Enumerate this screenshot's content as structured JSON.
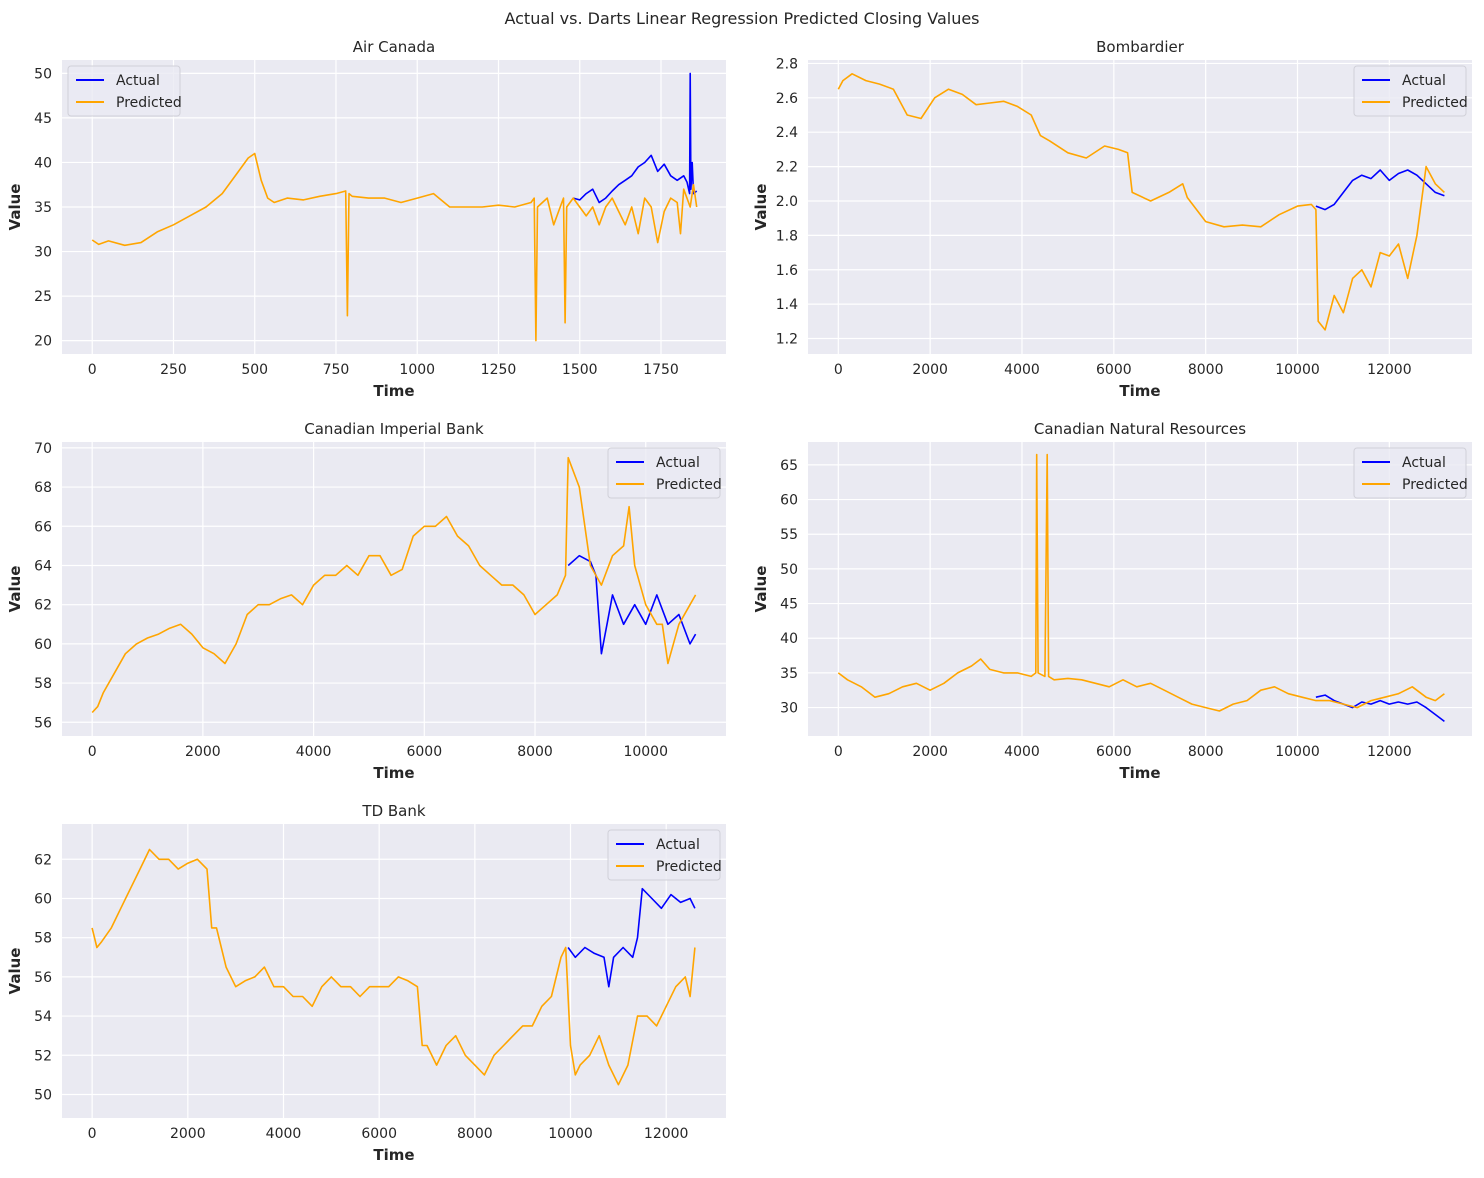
{
  "figure": {
    "title": "Actual vs. Darts Linear Regression Predicted Closing Values"
  },
  "colors": {
    "actual": "#0000ff",
    "predicted": "#ffa500",
    "plot_bg": "#eaeaf2",
    "grid": "#ffffff"
  },
  "chart_data": [
    {
      "type": "line",
      "title": "Air Canada",
      "xlabel": "Time",
      "ylabel": "Value",
      "xlim": [
        -93,
        1950
      ],
      "ylim": [
        18.5,
        51.5
      ],
      "xticks": [
        0,
        250,
        500,
        750,
        1000,
        1250,
        1500,
        1750
      ],
      "yticks": [
        20,
        25,
        30,
        35,
        40,
        45,
        50
      ],
      "ytick_labels": [
        "20",
        "25",
        "30",
        "35",
        "40",
        "45",
        "50"
      ],
      "legend": "top-left",
      "grid": true,
      "series": [
        {
          "name": "Actual",
          "color": "#0000ff",
          "x": [
            1480,
            1500,
            1520,
            1540,
            1560,
            1580,
            1600,
            1620,
            1640,
            1660,
            1680,
            1700,
            1720,
            1740,
            1760,
            1780,
            1800,
            1820,
            1830,
            1838,
            1840,
            1842,
            1846,
            1850,
            1860
          ],
          "y": [
            36.0,
            35.8,
            36.5,
            37.0,
            35.5,
            36.0,
            36.8,
            37.5,
            38.0,
            38.5,
            39.5,
            40.0,
            40.8,
            39.0,
            39.8,
            38.5,
            38.0,
            38.5,
            37.8,
            36.5,
            50.0,
            37.0,
            40.0,
            36.5,
            36.8
          ]
        },
        {
          "name": "Predicted",
          "color": "#ffa500",
          "x": [
            0,
            20,
            50,
            100,
            150,
            200,
            250,
            300,
            350,
            400,
            450,
            480,
            500,
            520,
            540,
            560,
            600,
            650,
            700,
            750,
            780,
            785,
            790,
            800,
            850,
            900,
            950,
            1000,
            1050,
            1100,
            1150,
            1200,
            1250,
            1300,
            1350,
            1360,
            1365,
            1370,
            1400,
            1420,
            1440,
            1450,
            1455,
            1460,
            1480,
            1500,
            1520,
            1540,
            1560,
            1580,
            1600,
            1620,
            1640,
            1660,
            1680,
            1700,
            1720,
            1740,
            1760,
            1780,
            1800,
            1810,
            1820,
            1840,
            1850,
            1860
          ],
          "y": [
            31.3,
            30.8,
            31.2,
            30.7,
            31.0,
            32.2,
            33.0,
            34.0,
            35.0,
            36.5,
            39.0,
            40.5,
            41.0,
            38.0,
            36.0,
            35.5,
            36.0,
            35.8,
            36.2,
            36.5,
            36.8,
            22.8,
            36.5,
            36.2,
            36.0,
            36.0,
            35.5,
            36.0,
            36.5,
            35.0,
            35.0,
            35.0,
            35.2,
            35.0,
            35.5,
            36.0,
            20.0,
            35.0,
            36.0,
            33.0,
            35.0,
            36.0,
            22.0,
            35.0,
            36.0,
            35.0,
            34.0,
            35.0,
            33.0,
            35.0,
            36.0,
            34.5,
            33.0,
            35.0,
            32.0,
            36.0,
            35.0,
            31.0,
            34.5,
            36.0,
            35.5,
            32.0,
            37.0,
            35.0,
            37.5,
            35.0
          ]
        }
      ]
    },
    {
      "type": "line",
      "title": "Bombardier",
      "xlabel": "Time",
      "ylabel": "Value",
      "xlim": [
        -660,
        13800
      ],
      "ylim": [
        1.11,
        2.82
      ],
      "xticks": [
        0,
        2000,
        4000,
        6000,
        8000,
        10000,
        12000
      ],
      "yticks": [
        1.2,
        1.4,
        1.6,
        1.8,
        2.0,
        2.2,
        2.4,
        2.6,
        2.8
      ],
      "ytick_labels": [
        "1.2",
        "1.4",
        "1.6",
        "1.8",
        "2.0",
        "2.2",
        "2.4",
        "2.6",
        "2.8"
      ],
      "legend": "top-right",
      "grid": true,
      "series": [
        {
          "name": "Actual",
          "color": "#0000ff",
          "x": [
            10400,
            10600,
            10800,
            11000,
            11200,
            11400,
            11600,
            11800,
            12000,
            12200,
            12400,
            12600,
            12800,
            13000,
            13200
          ],
          "y": [
            1.97,
            1.95,
            1.98,
            2.05,
            2.12,
            2.15,
            2.13,
            2.18,
            2.12,
            2.16,
            2.18,
            2.15,
            2.1,
            2.05,
            2.03
          ]
        },
        {
          "name": "Predicted",
          "color": "#ffa500",
          "x": [
            0,
            100,
            300,
            600,
            900,
            1200,
            1500,
            1800,
            2100,
            2400,
            2700,
            3000,
            3300,
            3600,
            3900,
            4200,
            4400,
            4600,
            5000,
            5400,
            5800,
            6100,
            6300,
            6400,
            6800,
            7200,
            7500,
            7600,
            8000,
            8400,
            8800,
            9200,
            9600,
            10000,
            10300,
            10400,
            10450,
            10600,
            10800,
            11000,
            11200,
            11400,
            11600,
            11800,
            12000,
            12200,
            12400,
            12600,
            12800,
            13000,
            13200
          ],
          "y": [
            2.65,
            2.7,
            2.74,
            2.7,
            2.68,
            2.65,
            2.5,
            2.48,
            2.6,
            2.65,
            2.62,
            2.56,
            2.57,
            2.58,
            2.55,
            2.5,
            2.38,
            2.35,
            2.28,
            2.25,
            2.32,
            2.3,
            2.28,
            2.05,
            2.0,
            2.05,
            2.1,
            2.02,
            1.88,
            1.85,
            1.86,
            1.85,
            1.92,
            1.97,
            1.98,
            1.95,
            1.3,
            1.25,
            1.45,
            1.35,
            1.55,
            1.6,
            1.5,
            1.7,
            1.68,
            1.75,
            1.55,
            1.8,
            2.2,
            2.1,
            2.05
          ]
        }
      ]
    },
    {
      "type": "line",
      "title": "Canadian Imperial Bank",
      "xlabel": "Time",
      "ylabel": "Value",
      "xlim": [
        -545,
        11450
      ],
      "ylim": [
        55.3,
        70.3
      ],
      "xticks": [
        0,
        2000,
        4000,
        6000,
        8000,
        10000
      ],
      "yticks": [
        56,
        58,
        60,
        62,
        64,
        66,
        68,
        70
      ],
      "ytick_labels": [
        "56",
        "58",
        "60",
        "62",
        "64",
        "66",
        "68",
        "70"
      ],
      "legend": "top-right",
      "grid": true,
      "series": [
        {
          "name": "Actual",
          "color": "#0000ff",
          "x": [
            8600,
            8800,
            9000,
            9100,
            9200,
            9300,
            9400,
            9600,
            9800,
            10000,
            10200,
            10400,
            10600,
            10800,
            10900
          ],
          "y": [
            64.0,
            64.5,
            64.2,
            63.5,
            59.5,
            61.0,
            62.5,
            61.0,
            62.0,
            61.0,
            62.5,
            61.0,
            61.5,
            60.0,
            60.5
          ]
        },
        {
          "name": "Predicted",
          "color": "#ffa500",
          "x": [
            0,
            100,
            200,
            400,
            600,
            800,
            1000,
            1200,
            1400,
            1600,
            1800,
            2000,
            2200,
            2400,
            2600,
            2800,
            3000,
            3200,
            3400,
            3600,
            3800,
            4000,
            4200,
            4400,
            4600,
            4800,
            5000,
            5200,
            5400,
            5600,
            5800,
            6000,
            6200,
            6400,
            6600,
            6800,
            7000,
            7200,
            7400,
            7600,
            7800,
            8000,
            8200,
            8400,
            8550,
            8600,
            8800,
            9000,
            9200,
            9400,
            9600,
            9700,
            9800,
            10000,
            10200,
            10300,
            10400,
            10600,
            10800,
            10900
          ],
          "y": [
            56.5,
            56.8,
            57.5,
            58.5,
            59.5,
            60.0,
            60.3,
            60.5,
            60.8,
            61.0,
            60.5,
            59.8,
            59.5,
            59.0,
            60.0,
            61.5,
            62.0,
            62.0,
            62.3,
            62.5,
            62.0,
            63.0,
            63.5,
            63.5,
            64.0,
            63.5,
            64.5,
            64.5,
            63.5,
            63.8,
            65.5,
            66.0,
            66.0,
            66.5,
            65.5,
            65.0,
            64.0,
            63.5,
            63.0,
            63.0,
            62.5,
            61.5,
            62.0,
            62.5,
            63.5,
            69.5,
            68.0,
            64.0,
            63.0,
            64.5,
            65.0,
            67.0,
            64.0,
            62.0,
            61.0,
            61.0,
            59.0,
            61.0,
            62.0,
            62.5
          ]
        }
      ]
    },
    {
      "type": "line",
      "title": "Canadian Natural Resources",
      "xlabel": "Time",
      "ylabel": "Value",
      "xlim": [
        -660,
        13800
      ],
      "ylim": [
        25.9,
        68.3
      ],
      "xticks": [
        0,
        2000,
        4000,
        6000,
        8000,
        10000,
        12000
      ],
      "yticks": [
        30,
        35,
        40,
        45,
        50,
        55,
        60,
        65
      ],
      "ytick_labels": [
        "30",
        "35",
        "40",
        "45",
        "50",
        "55",
        "60",
        "65"
      ],
      "legend": "top-right",
      "grid": true,
      "series": [
        {
          "name": "Actual",
          "color": "#0000ff",
          "x": [
            10400,
            10600,
            10800,
            11000,
            11200,
            11400,
            11600,
            11800,
            12000,
            12200,
            12400,
            12600,
            12800,
            13000,
            13200
          ],
          "y": [
            31.5,
            31.8,
            31.0,
            30.5,
            30.0,
            30.8,
            30.5,
            31.0,
            30.5,
            30.8,
            30.5,
            30.8,
            30.0,
            29.0,
            28.0
          ]
        },
        {
          "name": "Predicted",
          "color": "#ffa500",
          "x": [
            0,
            200,
            500,
            800,
            1100,
            1400,
            1700,
            2000,
            2300,
            2600,
            2900,
            3100,
            3300,
            3600,
            3900,
            4200,
            4300,
            4320,
            4350,
            4500,
            4550,
            4580,
            4700,
            5000,
            5300,
            5600,
            5900,
            6200,
            6500,
            6800,
            7100,
            7400,
            7700,
            8000,
            8300,
            8600,
            8900,
            9200,
            9500,
            9800,
            10100,
            10400,
            10700,
            11000,
            11300,
            11600,
            11900,
            12200,
            12500,
            12800,
            13000,
            13200
          ],
          "y": [
            35.0,
            34.0,
            33.0,
            31.5,
            32.0,
            33.0,
            33.5,
            32.5,
            33.5,
            35.0,
            36.0,
            37.0,
            35.5,
            35.0,
            35.0,
            34.5,
            35.0,
            66.5,
            35.0,
            34.5,
            66.5,
            34.5,
            34.0,
            34.2,
            34.0,
            33.5,
            33.0,
            34.0,
            33.0,
            33.5,
            32.5,
            31.5,
            30.5,
            30.0,
            29.5,
            30.5,
            31.0,
            32.5,
            33.0,
            32.0,
            31.5,
            31.0,
            31.0,
            30.5,
            30.0,
            31.0,
            31.5,
            32.0,
            33.0,
            31.5,
            31.0,
            32.0
          ]
        }
      ]
    },
    {
      "type": "line",
      "title": "TD Bank",
      "xlabel": "Time",
      "ylabel": "Value",
      "xlim": [
        -630,
        13250
      ],
      "ylim": [
        48.8,
        63.8
      ],
      "xticks": [
        0,
        2000,
        4000,
        6000,
        8000,
        10000,
        12000
      ],
      "yticks": [
        50,
        52,
        54,
        56,
        58,
        60,
        62
      ],
      "ytick_labels": [
        "50",
        "52",
        "54",
        "56",
        "58",
        "60",
        "62"
      ],
      "legend": "top-right",
      "grid": true,
      "series": [
        {
          "name": "Actual",
          "color": "#0000ff",
          "x": [
            9950,
            10100,
            10300,
            10500,
            10700,
            10800,
            10900,
            11100,
            11300,
            11400,
            11500,
            11700,
            11900,
            12100,
            12300,
            12500,
            12600
          ],
          "y": [
            57.5,
            57.0,
            57.5,
            57.2,
            57.0,
            55.5,
            57.0,
            57.5,
            57.0,
            58.0,
            60.5,
            60.0,
            59.5,
            60.2,
            59.8,
            60.0,
            59.5
          ]
        },
        {
          "name": "Predicted",
          "color": "#ffa500",
          "x": [
            0,
            100,
            200,
            400,
            600,
            800,
            1000,
            1200,
            1400,
            1600,
            1800,
            2000,
            2200,
            2400,
            2500,
            2600,
            2800,
            3000,
            3200,
            3400,
            3600,
            3800,
            4000,
            4200,
            4400,
            4600,
            4800,
            5000,
            5200,
            5400,
            5600,
            5800,
            6000,
            6200,
            6400,
            6600,
            6800,
            6900,
            7000,
            7200,
            7400,
            7600,
            7800,
            8000,
            8200,
            8400,
            8600,
            8800,
            9000,
            9200,
            9400,
            9600,
            9800,
            9900,
            10000,
            10100,
            10200,
            10400,
            10600,
            10800,
            11000,
            11200,
            11400,
            11600,
            11800,
            12000,
            12200,
            12400,
            12500,
            12600
          ],
          "y": [
            58.5,
            57.5,
            57.8,
            58.5,
            59.5,
            60.5,
            61.5,
            62.5,
            62.0,
            62.0,
            61.5,
            61.8,
            62.0,
            61.5,
            58.5,
            58.5,
            56.5,
            55.5,
            55.8,
            56.0,
            56.5,
            55.5,
            55.5,
            55.0,
            55.0,
            54.5,
            55.5,
            56.0,
            55.5,
            55.5,
            55.0,
            55.5,
            55.5,
            55.5,
            56.0,
            55.8,
            55.5,
            52.5,
            52.5,
            51.5,
            52.5,
            53.0,
            52.0,
            51.5,
            51.0,
            52.0,
            52.5,
            53.0,
            53.5,
            53.5,
            54.5,
            55.0,
            57.0,
            57.5,
            52.5,
            51.0,
            51.5,
            52.0,
            53.0,
            51.5,
            50.5,
            51.5,
            54.0,
            54.0,
            53.5,
            54.5,
            55.5,
            56.0,
            55.0,
            57.5
          ]
        }
      ]
    }
  ]
}
